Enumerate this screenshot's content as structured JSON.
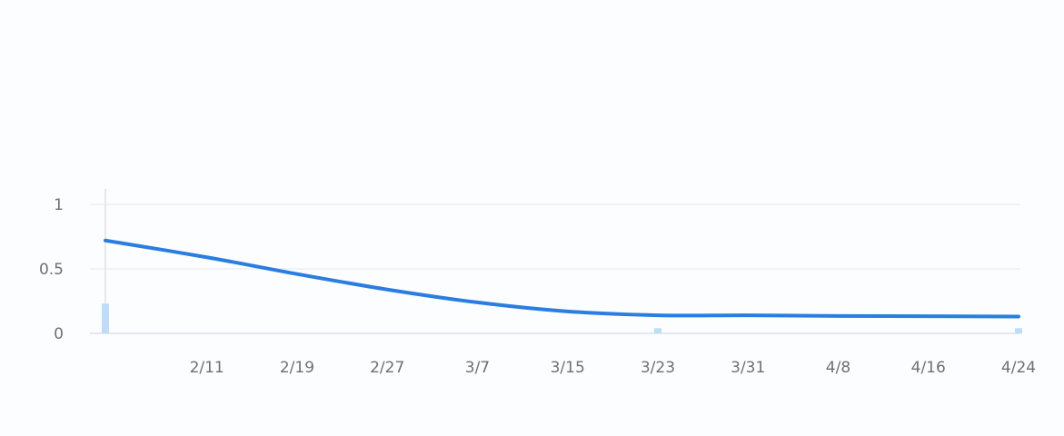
{
  "chart_data": {
    "type": "line",
    "title": "",
    "xlabel": "",
    "ylabel": "",
    "x_tick_labels": [
      "2/11",
      "2/19",
      "2/27",
      "3/7",
      "3/15",
      "3/23",
      "3/31",
      "4/8",
      "4/16",
      "4/24"
    ],
    "y_tick_labels": [
      "0",
      "0.5",
      "1"
    ],
    "y_ticks": [
      0,
      0.5,
      1
    ],
    "ylim": [
      0,
      1
    ],
    "xlim": [
      "2026-02-02",
      "2026-04-24"
    ],
    "grid": true,
    "series": [
      {
        "kind": "line",
        "color": "#2a7de1",
        "points": [
          {
            "x": "2026-02-02",
            "y": 0.72
          },
          {
            "x": "2026-02-11",
            "y": 0.59
          },
          {
            "x": "2026-02-19",
            "y": 0.46
          },
          {
            "x": "2026-02-27",
            "y": 0.34
          },
          {
            "x": "2026-03-07",
            "y": 0.24
          },
          {
            "x": "2026-03-15",
            "y": 0.17
          },
          {
            "x": "2026-03-23",
            "y": 0.14
          },
          {
            "x": "2026-03-31",
            "y": 0.14
          },
          {
            "x": "2026-04-08",
            "y": 0.135
          },
          {
            "x": "2026-04-16",
            "y": 0.133
          },
          {
            "x": "2026-04-24",
            "y": 0.13
          }
        ]
      },
      {
        "kind": "bar",
        "color": "#bcdcf7",
        "points": [
          {
            "x": "2026-02-02",
            "y": 0.23
          },
          {
            "x": "2026-03-23",
            "y": 0.04
          },
          {
            "x": "2026-04-24",
            "y": 0.04
          }
        ]
      }
    ]
  }
}
